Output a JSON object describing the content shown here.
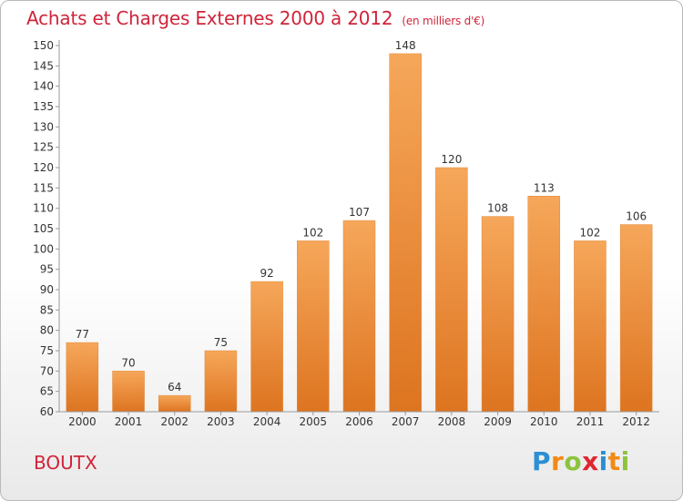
{
  "header": {
    "title": "Achats et Charges Externes 2000 à 2012",
    "unit": "(en milliers d'€)"
  },
  "footer": {
    "commune": "BOUTX"
  },
  "logo": {
    "letters": [
      "P",
      "r",
      "o",
      "x",
      "i",
      "t",
      "i"
    ],
    "colors": [
      "#2a8fd4",
      "#f28a16",
      "#8cc43d",
      "#e0262f",
      "#2a8fd4",
      "#f28a16",
      "#8cc43d"
    ]
  },
  "colors": {
    "bar_top": "#f6a75a",
    "bar_bottom": "#dd7420",
    "title": "#d0243a"
  },
  "chart_data": {
    "type": "bar",
    "title": "Achats et Charges Externes 2000 à 2012",
    "xlabel": "",
    "ylabel": "",
    "categories": [
      "2000",
      "2001",
      "2002",
      "2003",
      "2004",
      "2005",
      "2006",
      "2007",
      "2008",
      "2009",
      "2010",
      "2011",
      "2012"
    ],
    "values": [
      77,
      70,
      64,
      75,
      92,
      102,
      107,
      148,
      120,
      108,
      113,
      102,
      106
    ],
    "ylim": [
      60,
      150
    ],
    "yticks": [
      60,
      65,
      70,
      75,
      80,
      85,
      90,
      95,
      100,
      105,
      110,
      115,
      120,
      125,
      130,
      135,
      140,
      145,
      150
    ],
    "grid": false,
    "legend": "none"
  }
}
